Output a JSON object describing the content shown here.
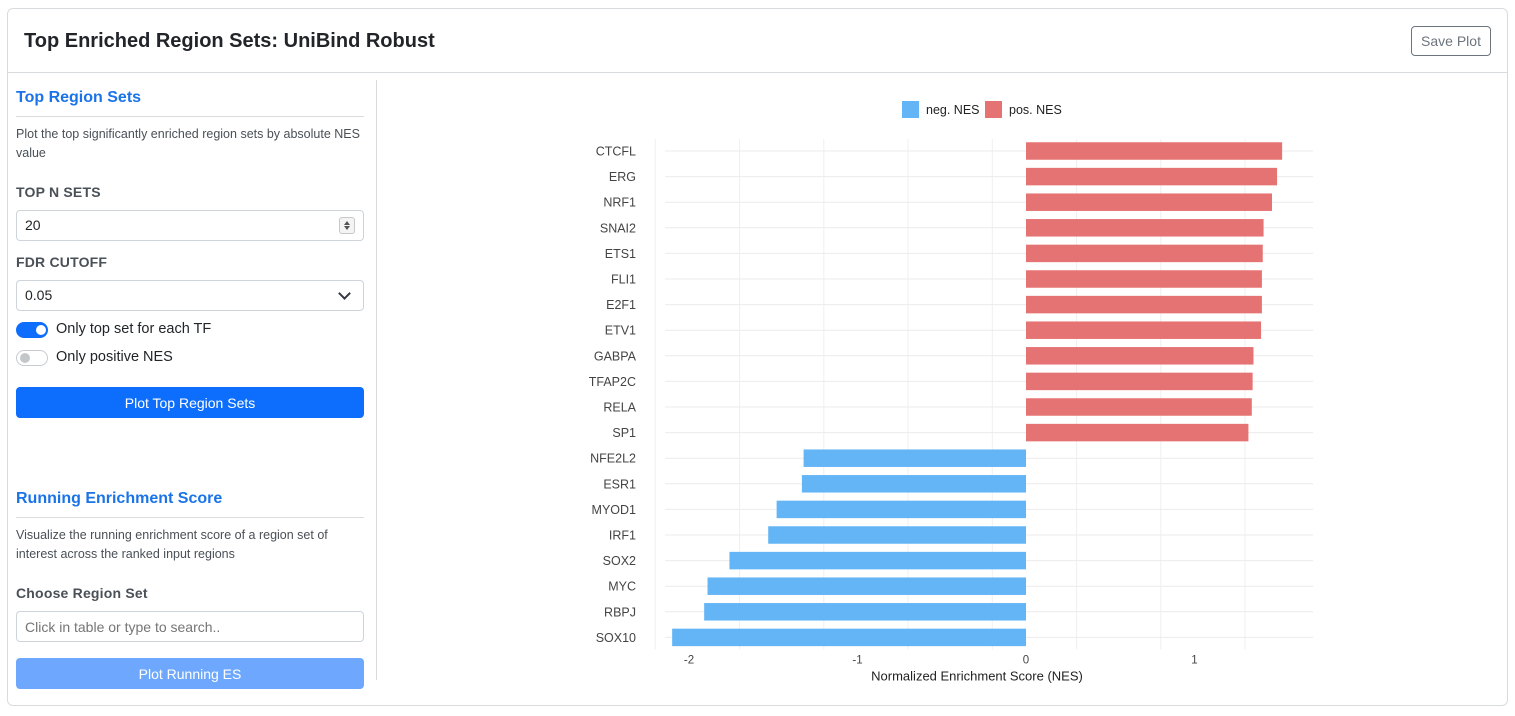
{
  "header": {
    "title": "Top Enriched Region Sets: UniBind Robust",
    "save_label": "Save Plot"
  },
  "top_region_sets": {
    "title": "Top Region Sets",
    "description": "Plot the top significantly enriched region sets by absolute NES value",
    "top_n_label": "TOP N SETS",
    "top_n_value": "20",
    "fdr_label": "FDR CUTOFF",
    "fdr_value": "0.05",
    "toggle_top_set_label": "Only top set for each TF",
    "toggle_top_set_on": true,
    "toggle_positive_label": "Only positive NES",
    "toggle_positive_on": false,
    "plot_button_label": "Plot Top Region Sets"
  },
  "running_es": {
    "title": "Running Enrichment Score",
    "description": "Visualize the running enrichment score of a region set of interest across the ranked input regions",
    "choose_label": "Choose Region Set",
    "search_placeholder": "Click in table or type to search..",
    "plot_button_label": "Plot Running ES"
  },
  "colors": {
    "neg": "#64b5f6",
    "pos": "#e57373",
    "accent": "#0d6efd",
    "section_title": "#1a73e8"
  },
  "chart_data": {
    "type": "bar",
    "orientation": "horizontal",
    "title": "",
    "xlabel": "Normalized Enrichment Score (NES)",
    "ylabel": "",
    "xlim": [
      -2.2,
      1.7
    ],
    "xticks": [
      -2,
      -1,
      0,
      1
    ],
    "legend_position": "top-center",
    "grid": true,
    "legend": [
      {
        "name": "neg. NES",
        "color": "#64b5f6"
      },
      {
        "name": "pos. NES",
        "color": "#e57373"
      }
    ],
    "categories": [
      "CTCFL",
      "ERG",
      "NRF1",
      "SNAI2",
      "ETS1",
      "FLI1",
      "E2F1",
      "ETV1",
      "GABPA",
      "TFAP2C",
      "RELA",
      "SP1",
      "NFE2L2",
      "ESR1",
      "MYOD1",
      "IRF1",
      "SOX2",
      "MYC",
      "RBPJ",
      "SOX10"
    ],
    "values": [
      1.52,
      1.49,
      1.46,
      1.41,
      1.405,
      1.4,
      1.4,
      1.395,
      1.35,
      1.345,
      1.34,
      1.32,
      -1.32,
      -1.33,
      -1.48,
      -1.53,
      -1.76,
      -1.89,
      -1.91,
      -2.1
    ]
  }
}
